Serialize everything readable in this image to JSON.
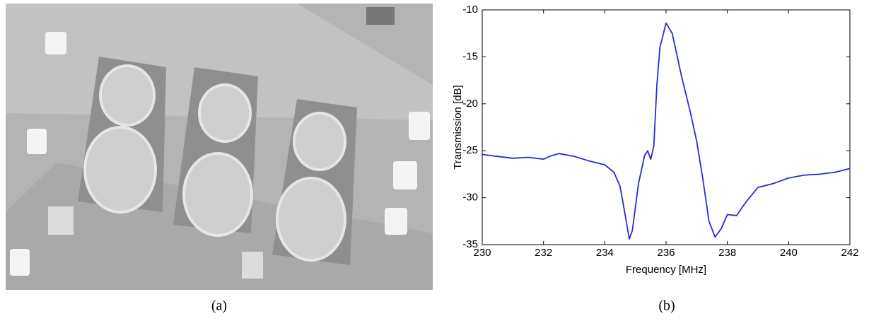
{
  "chart_data": {
    "type": "line",
    "xlabel": "Frequency [MHz]",
    "ylabel": "Transmission [dB]",
    "x": [
      230,
      230.5,
      231,
      231.5,
      232,
      232.2,
      232.5,
      233,
      233.5,
      234,
      234.3,
      234.5,
      234.7,
      234.8,
      234.9,
      235.1,
      235.3,
      235.4,
      235.5,
      235.6,
      235.7,
      235.8,
      236,
      236.2,
      236.5,
      236.8,
      237,
      237.2,
      237.4,
      237.6,
      237.8,
      238,
      238.3,
      238.6,
      239,
      239.5,
      240,
      240.5,
      241,
      241.5,
      242
    ],
    "series": [
      {
        "color": "#2a2ad8",
        "values": [
          -25.4,
          -25.6,
          -25.8,
          -25.7,
          -25.9,
          -25.6,
          -25.3,
          -25.6,
          -26.1,
          -26.5,
          -27.3,
          -28.8,
          -32.5,
          -34.4,
          -33.5,
          -28.5,
          -25.5,
          -25.0,
          -25.9,
          -24.5,
          -18,
          -14,
          -11.4,
          -12.5,
          -17,
          -21,
          -24,
          -28,
          -32.5,
          -34.2,
          -33.3,
          -31.8,
          -31.9,
          -30.5,
          -28.9,
          -28.5,
          -27.9,
          -27.6,
          -27.5,
          -27.3,
          -26.9
        ]
      }
    ],
    "xlim": [
      230,
      242
    ],
    "xticks": [
      230,
      232,
      234,
      236,
      238,
      240,
      242
    ],
    "ylim": [
      -35,
      -10
    ],
    "yticks": [
      -35,
      -30,
      -25,
      -20,
      -15,
      -10
    ]
  },
  "figure": {
    "captions": [
      "(a)",
      "(b)"
    ]
  }
}
